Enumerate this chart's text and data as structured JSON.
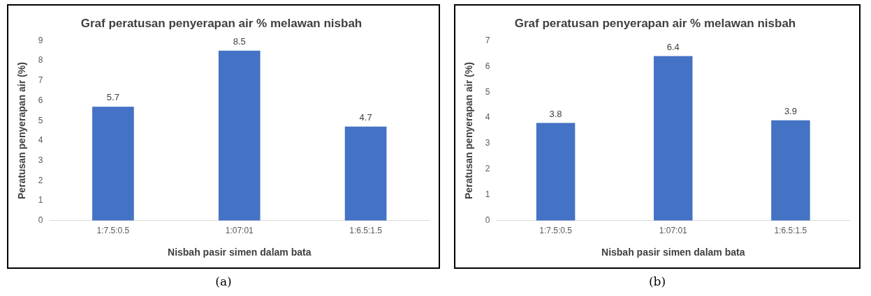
{
  "chart_data": [
    {
      "type": "bar",
      "title": "Graf peratusan penyerapan air % melawan nisbah",
      "xlabel": "Nisbah pasir simen dalam bata",
      "ylabel": "Peratusan penyerapan air (%)",
      "categories": [
        "1:7.5:0.5",
        "1:07:01",
        "1:6.5:1.5"
      ],
      "values": [
        5.7,
        8.5,
        4.7
      ],
      "color": "#4472c4",
      "ylim": [
        0,
        9
      ],
      "yticks": [
        0,
        1,
        2,
        3,
        4,
        5,
        6,
        7,
        8,
        9
      ],
      "grid": false,
      "legend": false,
      "data_labels": true,
      "annotations": [
        "(a)"
      ]
    },
    {
      "type": "bar",
      "title": "Graf peratusan penyerapan air % melawan nisbah",
      "xlabel": "Nisbah pasir simen dalam bata",
      "ylabel": "Peratusan penyerapan air (%)",
      "categories": [
        "1:7.5:0.5",
        "1:07:01",
        "1:6.5:1.5"
      ],
      "values": [
        3.8,
        6.4,
        3.9
      ],
      "color": "#4472c4",
      "ylim": [
        0,
        7
      ],
      "yticks": [
        0,
        1,
        2,
        3,
        4,
        5,
        6,
        7
      ],
      "grid": false,
      "legend": false,
      "data_labels": true,
      "annotations": [
        "(b)"
      ]
    }
  ]
}
